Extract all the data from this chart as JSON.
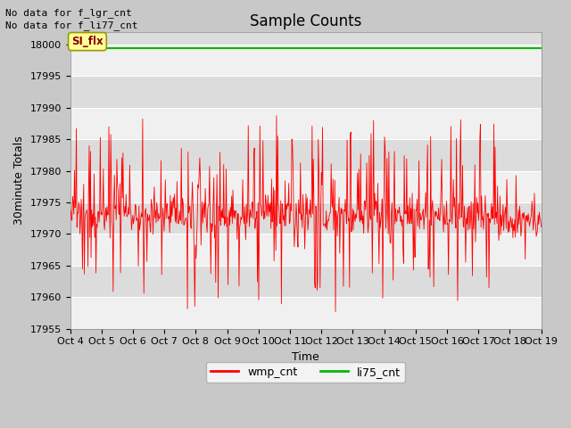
{
  "title": "Sample Counts",
  "xlabel": "Time",
  "ylabel": "30minute Totals",
  "ylim": [
    17955,
    18002
  ],
  "xlim": [
    0,
    360
  ],
  "x_tick_labels": [
    "Oct 4",
    "Oct 5",
    "Oct 6",
    "Oct 7",
    "Oct 8",
    "Oct 9",
    "Oct 10",
    "Oct 11",
    "Oct 12",
    "Oct 13",
    "Oct 14",
    "Oct 15",
    "Oct 16",
    "Oct 17",
    "Oct 18",
    "Oct 19"
  ],
  "x_tick_positions": [
    0,
    24,
    48,
    72,
    96,
    120,
    144,
    168,
    192,
    216,
    240,
    264,
    288,
    312,
    336,
    360
  ],
  "y_ticks": [
    17955,
    17960,
    17965,
    17970,
    17975,
    17980,
    17985,
    17990,
    17995,
    18000
  ],
  "wmp_cnt_color": "#ff0000",
  "li75_cnt_color": "#00bb00",
  "fig_bg_color": "#c8c8c8",
  "plot_bg_color": "#ffffff",
  "band_color_light": "#f0f0f0",
  "band_color_dark": "#dcdcdc",
  "annotation1": "No data for f_lgr_cnt",
  "annotation2": "No data for f_li77_cnt",
  "si_flx_label": "SI_flx",
  "legend_labels": [
    "wmp_cnt",
    "li75_cnt"
  ],
  "title_fontsize": 12,
  "axis_fontsize": 9,
  "tick_fontsize": 8
}
